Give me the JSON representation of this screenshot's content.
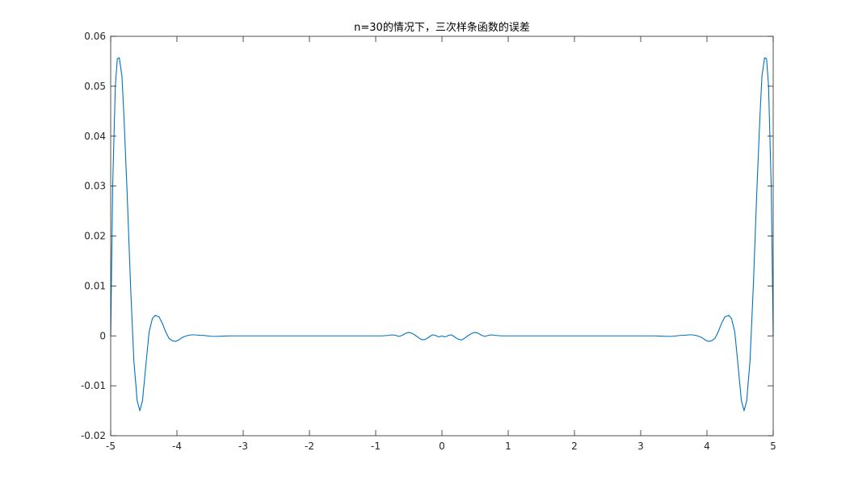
{
  "chart_data": {
    "type": "line",
    "title": "n=30的情况下，三次样条函数的误差",
    "xlabel": "",
    "ylabel": "",
    "xlim": [
      -5,
      5
    ],
    "ylim": [
      -0.02,
      0.06
    ],
    "xticks": [
      -5,
      -4,
      -3,
      -2,
      -1,
      0,
      1,
      2,
      3,
      4,
      5
    ],
    "xtick_labels": [
      "-5",
      "-4",
      "-3",
      "-2",
      "-1",
      "0",
      "1",
      "2",
      "3",
      "4",
      "5"
    ],
    "yticks": [
      -0.02,
      -0.01,
      0,
      0.01,
      0.02,
      0.03,
      0.04,
      0.05,
      0.06
    ],
    "ytick_labels": [
      "-0.02",
      "-0.01",
      "0",
      "0.01",
      "0.02",
      "0.03",
      "0.04",
      "0.05",
      "0.06"
    ],
    "grid": false,
    "legend": "none",
    "series": [
      {
        "color": "#0072BD",
        "x": [
          -5,
          -4.97,
          -4.93,
          -4.9,
          -4.87,
          -4.83,
          -4.8,
          -4.75,
          -4.7,
          -4.65,
          -4.6,
          -4.56,
          -4.52,
          -4.47,
          -4.42,
          -4.37,
          -4.33,
          -4.27,
          -4.22,
          -4.17,
          -4.12,
          -4.07,
          -4.02,
          -3.97,
          -3.93,
          -3.88,
          -3.83,
          -3.78,
          -3.72,
          -3.66,
          -3.6,
          -3.54,
          -3.47,
          -3.4,
          -3.3,
          -3.2,
          -3.0,
          -2.8,
          -2.5,
          -2.2,
          -2.0,
          -1.8,
          -1.5,
          -1.2,
          -1.0,
          -0.9,
          -0.8,
          -0.75,
          -0.7,
          -0.65,
          -0.6,
          -0.55,
          -0.5,
          -0.45,
          -0.4,
          -0.35,
          -0.3,
          -0.25,
          -0.2,
          -0.17,
          -0.14,
          -0.1,
          -0.07,
          -0.04,
          0,
          0.04,
          0.07,
          0.1,
          0.14,
          0.17,
          0.2,
          0.25,
          0.3,
          0.35,
          0.4,
          0.45,
          0.5,
          0.55,
          0.6,
          0.65,
          0.7,
          0.75,
          0.8,
          0.9,
          1.0,
          1.2,
          1.5,
          1.8,
          2.0,
          2.2,
          2.5,
          2.8,
          3.0,
          3.2,
          3.3,
          3.4,
          3.47,
          3.54,
          3.6,
          3.66,
          3.72,
          3.78,
          3.83,
          3.88,
          3.93,
          3.97,
          4.02,
          4.07,
          4.12,
          4.17,
          4.22,
          4.27,
          4.33,
          4.37,
          4.42,
          4.47,
          4.52,
          4.56,
          4.6,
          4.65,
          4.7,
          4.75,
          4.8,
          4.83,
          4.87,
          4.9,
          4.93,
          4.97,
          5
        ],
        "y": [
          0,
          0.03,
          0.05,
          0.0555,
          0.0557,
          0.052,
          0.044,
          0.028,
          0.01,
          -0.005,
          -0.013,
          -0.015,
          -0.013,
          -0.006,
          0.0008,
          0.0035,
          0.0041,
          0.0038,
          0.0025,
          0.0008,
          -0.0005,
          -0.001,
          -0.0011,
          -0.0008,
          -0.0004,
          -0.0001,
          0.0001,
          0.0002,
          0.0002,
          0.0001,
          0.0001,
          0,
          -0.0001,
          -0.0001,
          -5e-05,
          0,
          0,
          0,
          0,
          0,
          0,
          0,
          0,
          0,
          0,
          0,
          0.0001,
          0.0002,
          0.0001,
          -0.0001,
          0.0001,
          0.0005,
          0.0007,
          0.0005,
          0.0001,
          -0.0004,
          -0.0008,
          -0.0007,
          -0.0003,
          0,
          0.0002,
          0.0001,
          -0.0001,
          -0.0002,
          0,
          -0.0002,
          -0.0001,
          0.0001,
          0.0002,
          0,
          -0.0003,
          -0.0007,
          -0.0008,
          -0.0004,
          0.0001,
          0.0005,
          0.0007,
          0.0005,
          0.0001,
          -0.0001,
          0.0001,
          0.0002,
          0.0001,
          0,
          0,
          0,
          0,
          0,
          0,
          0,
          0,
          0,
          0,
          0,
          -5e-05,
          -0.0001,
          -0.0001,
          0,
          0.0001,
          0.0001,
          0.0002,
          0.0002,
          0.0001,
          -0.0001,
          -0.0004,
          -0.0008,
          -0.0011,
          -0.001,
          -0.0005,
          0.0008,
          0.0025,
          0.0038,
          0.0041,
          0.0035,
          0.0008,
          -0.006,
          -0.013,
          -0.015,
          -0.013,
          -0.005,
          0.01,
          0.028,
          0.044,
          0.052,
          0.0557,
          0.0555,
          0.05,
          0.03,
          0
        ]
      }
    ]
  }
}
